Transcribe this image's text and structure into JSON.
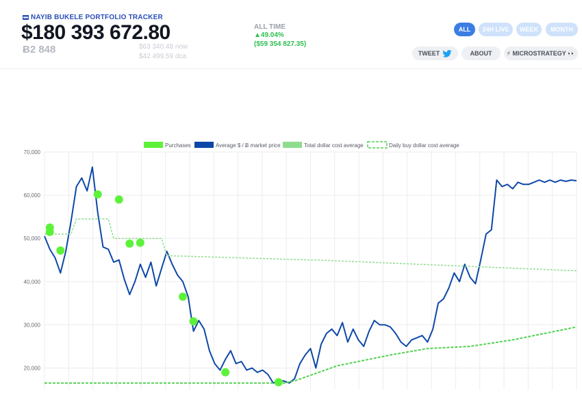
{
  "header": {
    "app_title": "NAYIB BUKELE PORTFOLIO TRACKER",
    "usd_value": "$180 393 672.80",
    "btc_holding": "Ƀ2 848",
    "now_price": "$63 340.48 now",
    "dca_price": "$42 499.59 dca",
    "alltime_label": "ALL TIME",
    "alltime_pct": "▲49.04%",
    "alltime_usd": "($59 354 827.35)"
  },
  "tabs": [
    {
      "label": "ALL",
      "active": true
    },
    {
      "label": "24H LIVE",
      "active": false
    },
    {
      "label": "WEEK",
      "active": false
    },
    {
      "label": "MONTH",
      "active": false
    }
  ],
  "actions": {
    "tweet_label": "TWEET",
    "about_label": "ABOUT",
    "microstrategy_label": "⚡ MICROSTRATEGY 👀"
  },
  "colors": {
    "accent": "#3b7de3",
    "positive": "#2dbe4f",
    "market_line": "#0d47a8",
    "purchase": "#5df23a",
    "dca": "#8fdc8f",
    "daily_dca": "#4fd14f"
  },
  "chart_data": {
    "type": "line",
    "ylim": [
      15000,
      70000
    ],
    "yticks": [
      "20,000",
      "30,000",
      "40,000",
      "50,000",
      "60,000",
      "70,000"
    ],
    "grid": true,
    "legend": "top",
    "legend_entries": [
      "Purchases",
      "Average $ / Ƀ market price",
      "Total dollar cost average",
      "Daily buy dollar cost average"
    ],
    "series": [
      {
        "name": "Average $ / Ƀ market price",
        "x": [
          0,
          1,
          2,
          3,
          4,
          5,
          6,
          7,
          8,
          9,
          10,
          11,
          12,
          13,
          14,
          15,
          16,
          17,
          18,
          19,
          20,
          21,
          22,
          23,
          24,
          25,
          26,
          27,
          28,
          29,
          30,
          31,
          32,
          33,
          34,
          35,
          36,
          37,
          38,
          39,
          40,
          41,
          42,
          43,
          44,
          45,
          46,
          47,
          48,
          49,
          50,
          51,
          52,
          53,
          54,
          55,
          56,
          57,
          58,
          59,
          60,
          61,
          62,
          63,
          64,
          65,
          66,
          67,
          68,
          69,
          70,
          71,
          72,
          73,
          74,
          75,
          76,
          77,
          78,
          79,
          80,
          81,
          82,
          83,
          84,
          85,
          86,
          87,
          88,
          89,
          90,
          91,
          92,
          93,
          94,
          95,
          96,
          97,
          98,
          99,
          100
        ],
        "values": [
          50500,
          47500,
          45500,
          42000,
          47000,
          54000,
          62000,
          64000,
          61000,
          66500,
          56000,
          48000,
          47500,
          44500,
          45000,
          40500,
          37000,
          40000,
          44000,
          41000,
          44500,
          39000,
          43000,
          47000,
          44000,
          41500,
          40000,
          36500,
          28500,
          31000,
          29000,
          24000,
          21000,
          19500,
          22000,
          24000,
          21000,
          21500,
          19500,
          20000,
          19000,
          19500,
          18500,
          16500,
          17000,
          17000,
          16500,
          17500,
          21000,
          23000,
          24500,
          20000,
          25500,
          28000,
          29000,
          27500,
          30500,
          26000,
          29000,
          26500,
          25000,
          28500,
          31000,
          30000,
          30000,
          29500,
          28000,
          26000,
          25000,
          26500,
          27000,
          27500,
          26000,
          29000,
          35000,
          36000,
          38500,
          42000,
          40000,
          44000,
          41000,
          39500,
          45000,
          51000,
          52000,
          63500,
          62000,
          62500,
          61500,
          63000,
          62500,
          62500,
          63000,
          63500,
          63000,
          63500,
          63000,
          63500,
          63200,
          63500,
          63340
        ],
        "note_x": "sample index"
      },
      {
        "name": "Total dollar cost average",
        "x": [
          0,
          5,
          6,
          12,
          13,
          22,
          23,
          50,
          51,
          100
        ],
        "values": [
          51000,
          51000,
          54500,
          54500,
          50000,
          50000,
          46000,
          45000,
          45000,
          42500
        ]
      },
      {
        "name": "Daily buy dollar cost average",
        "x": [
          0,
          45,
          47,
          55,
          65,
          72,
          80,
          88,
          94,
          100
        ],
        "values": [
          16500,
          16500,
          17000,
          20500,
          23000,
          24500,
          25000,
          26500,
          28000,
          29500
        ]
      }
    ],
    "purchases": {
      "x": [
        1,
        1,
        3,
        10,
        14,
        16,
        18,
        26,
        28,
        34,
        44
      ],
      "values": [
        52500,
        51500,
        47200,
        60200,
        59000,
        48800,
        49000,
        36500,
        30800,
        19000,
        16700
      ]
    }
  }
}
